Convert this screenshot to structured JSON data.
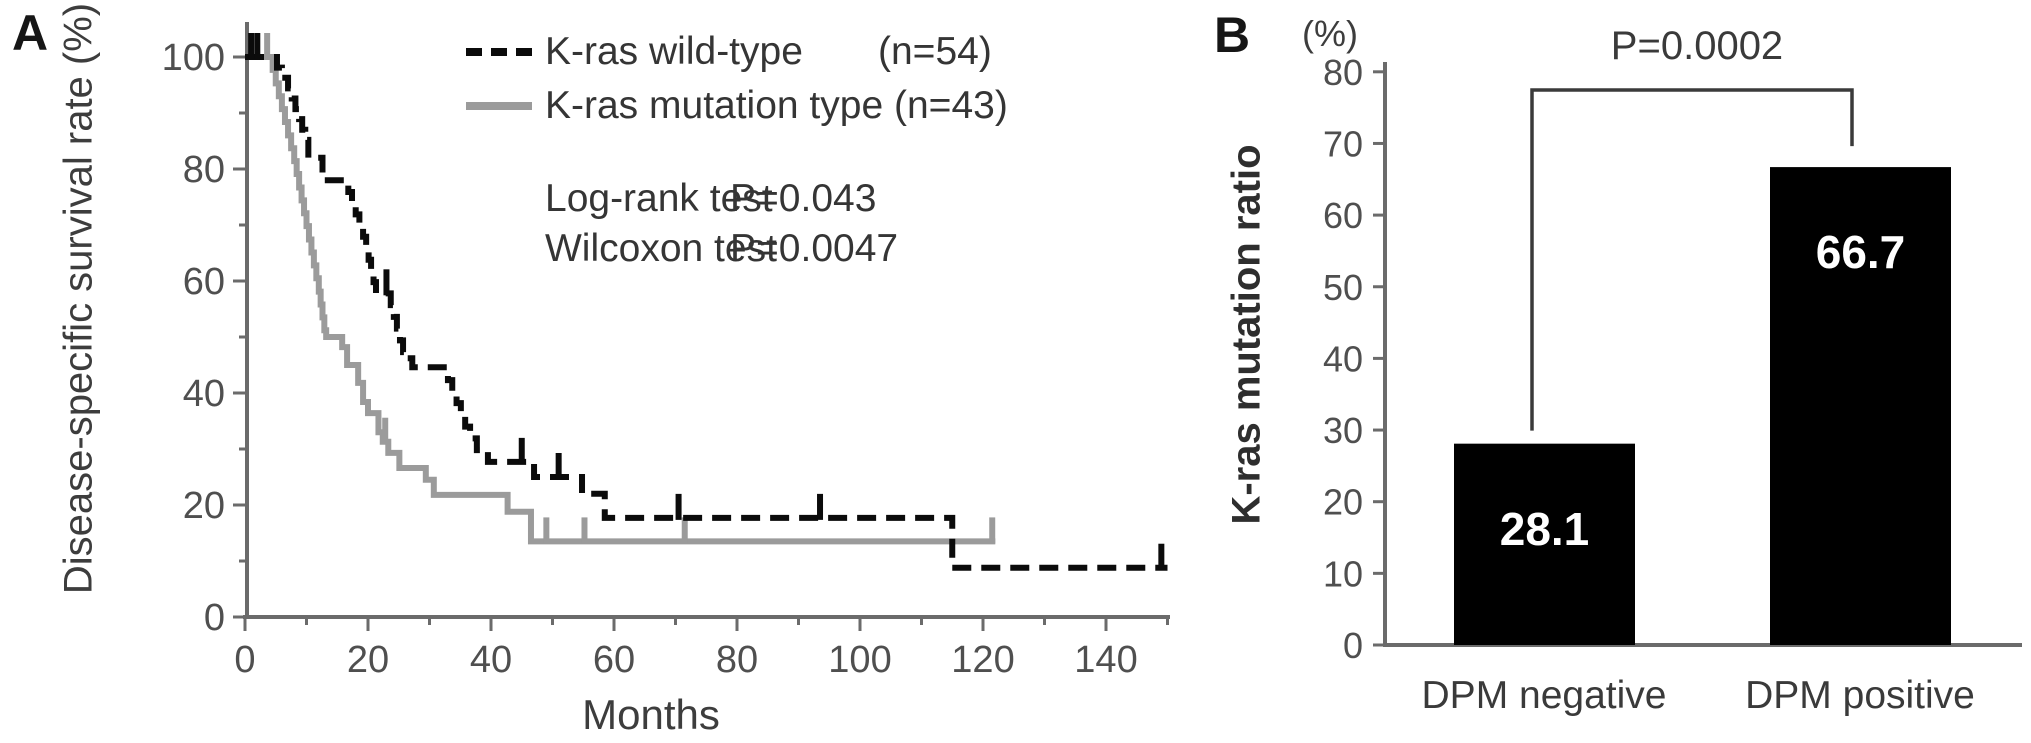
{
  "panels": {
    "a_label": "A",
    "b_label": "B"
  },
  "colors": {
    "background": "#ffffff",
    "axis": "#6b6b6b",
    "tick_text": "#4f4f4f",
    "text": "#3d3d3d",
    "curve_black": "#0b0b0b",
    "curve_gray": "#9b9b9b",
    "bar_fill": "#000000",
    "bar_value_text": "#ffffff",
    "bracket": "#3a3a3a"
  },
  "chart_data": [
    {
      "type": "line",
      "subtype": "kaplan-meier-step",
      "panel": "A",
      "xlabel": "Months",
      "ylabel": "Disease-specific survival rate (%)",
      "xlim": [
        0,
        150
      ],
      "ylim": [
        0,
        100
      ],
      "x_major_ticks": [
        0,
        20,
        40,
        60,
        80,
        100,
        120,
        140
      ],
      "x_minor_ticks": [
        10,
        30,
        50,
        70,
        90,
        110,
        130,
        150
      ],
      "y_major_ticks": [
        100,
        80,
        60,
        40,
        20,
        0
      ],
      "y_minor_ticks": [
        90,
        70,
        50,
        30,
        10
      ],
      "grid": false,
      "legend_position": "top-right",
      "stat_tests": [
        {
          "name": "Log-rank test",
          "value": "P=0.043"
        },
        {
          "name": "Wilcoxon test",
          "value": "P=0.0047"
        }
      ],
      "series": [
        {
          "name": "K-ras wild-type",
          "n_label": "(n=54)",
          "n": 54,
          "line": "dashed",
          "color": "#0b0b0b",
          "end": 150,
          "steps": [
            [
              0,
              100
            ],
            [
              5.2,
              98.1
            ],
            [
              6,
              96.3
            ],
            [
              7,
              94.4
            ],
            [
              7.6,
              92.6
            ],
            [
              8.2,
              90.7
            ],
            [
              8.8,
              88.9
            ],
            [
              9.3,
              87
            ],
            [
              9.8,
              85.2
            ],
            [
              10.3,
              82
            ],
            [
              12.6,
              78
            ],
            [
              16.8,
              75.9
            ],
            [
              17.4,
              73.9
            ],
            [
              18,
              71.9
            ],
            [
              18.6,
              69.9
            ],
            [
              19.2,
              67.9
            ],
            [
              19.7,
              65.9
            ],
            [
              20.1,
              63.8
            ],
            [
              20.5,
              61.8
            ],
            [
              20.9,
              59.8
            ],
            [
              21.3,
              57.8
            ],
            [
              23.7,
              55.7
            ],
            [
              24.2,
              53.6
            ],
            [
              24.7,
              51.5
            ],
            [
              25.2,
              49.4
            ],
            [
              25.7,
              47.3
            ],
            [
              26.2,
              46.2
            ],
            [
              27.2,
              44.6
            ],
            [
              33,
              42.3
            ],
            [
              33.7,
              40.2
            ],
            [
              34.4,
              38.2
            ],
            [
              35.1,
              36.1
            ],
            [
              35.8,
              34
            ],
            [
              36.6,
              31.9
            ],
            [
              37.7,
              29.8
            ],
            [
              39.5,
              27.7
            ],
            [
              47,
              25
            ],
            [
              54.8,
              22
            ],
            [
              58.5,
              17.7
            ],
            [
              115,
              8.8
            ]
          ],
          "censors": [
            [
              1,
              100
            ],
            [
              2,
              100
            ],
            [
              23,
              57.8
            ],
            [
              45,
              27.7
            ],
            [
              51,
              25
            ],
            [
              70.5,
              17.7
            ],
            [
              93.5,
              17.7
            ],
            [
              149,
              8.8
            ]
          ]
        },
        {
          "name": "K-ras mutation type",
          "n_label": "(n=43)",
          "n": 43,
          "line": "solid",
          "color": "#9b9b9b",
          "end": 122,
          "steps": [
            [
              0,
              100
            ],
            [
              4.5,
              97.7
            ],
            [
              5,
              95.3
            ],
            [
              5.5,
              93
            ],
            [
              6,
              90.7
            ],
            [
              6.5,
              88.4
            ],
            [
              7,
              86
            ],
            [
              7.5,
              83.7
            ],
            [
              8,
              81.4
            ],
            [
              8.4,
              79.1
            ],
            [
              8.8,
              76.7
            ],
            [
              9.2,
              74.4
            ],
            [
              9.6,
              72.1
            ],
            [
              10,
              69.8
            ],
            [
              10.4,
              67.4
            ],
            [
              10.8,
              65.1
            ],
            [
              11.2,
              62.8
            ],
            [
              11.6,
              60.5
            ],
            [
              12,
              58.1
            ],
            [
              12.3,
              55.8
            ],
            [
              12.6,
              53.5
            ],
            [
              12.9,
              51.2
            ],
            [
              13.2,
              50
            ],
            [
              15.8,
              48.2
            ],
            [
              16.6,
              45
            ],
            [
              18.4,
              41.8
            ],
            [
              19.2,
              38.4
            ],
            [
              20,
              36.4
            ],
            [
              21.7,
              33
            ],
            [
              22.4,
              31.3
            ],
            [
              23.3,
              29.3
            ],
            [
              25.1,
              26.6
            ],
            [
              29.4,
              24.5
            ],
            [
              30.7,
              21.8
            ],
            [
              42.7,
              18.8
            ],
            [
              46.5,
              13.5
            ]
          ],
          "censors": [
            [
              3.6,
              100
            ],
            [
              22.8,
              31.3
            ],
            [
              49,
              13.5
            ],
            [
              55.2,
              13.5
            ],
            [
              71.5,
              13.5
            ],
            [
              121.5,
              13.5
            ]
          ]
        }
      ]
    },
    {
      "type": "bar",
      "panel": "B",
      "unit": "(%)",
      "ylabel": "K-ras mutation ratio",
      "ylim": [
        0,
        80
      ],
      "y_ticks": [
        80,
        70,
        60,
        50,
        40,
        30,
        20,
        10,
        0
      ],
      "grid": false,
      "categories": [
        "DPM negative",
        "DPM positive"
      ],
      "values": [
        28.1,
        66.7
      ],
      "value_labels": [
        "28.1",
        "66.7"
      ],
      "bar_color": "#000000",
      "annotation": {
        "text": "P=0.0002",
        "connects": [
          "DPM negative",
          "DPM positive"
        ]
      }
    }
  ]
}
